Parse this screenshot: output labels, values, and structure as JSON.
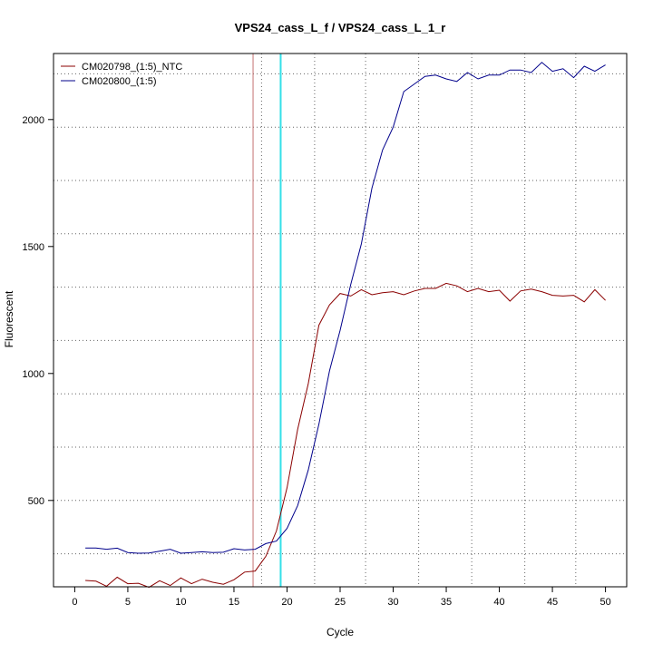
{
  "chart_data": {
    "type": "line",
    "title": "VPS24_cass_L_f / VPS24_cass_L_1_r",
    "xlabel": "Cycle",
    "ylabel": "Fluorescent",
    "xlim": [
      -2,
      52
    ],
    "ylim": [
      160,
      2260
    ],
    "xticks": [
      0,
      5,
      10,
      15,
      20,
      25,
      30,
      35,
      40,
      45,
      50
    ],
    "yticks": [
      500,
      1000,
      1500,
      2000
    ],
    "grid": true,
    "legend_position": "top-left",
    "x": [
      1,
      2,
      3,
      4,
      5,
      6,
      7,
      8,
      9,
      10,
      11,
      12,
      13,
      14,
      15,
      16,
      17,
      18,
      19,
      20,
      21,
      22,
      23,
      24,
      25,
      26,
      27,
      28,
      29,
      30,
      31,
      32,
      33,
      34,
      35,
      36,
      37,
      38,
      39,
      40,
      41,
      42,
      43,
      44,
      45,
      46,
      47,
      48,
      49,
      50
    ],
    "series": [
      {
        "name": "CM020798_(1:5)_NTC",
        "color": "#8b0000",
        "values": [
          185,
          182,
          162,
          198,
          172,
          174,
          158,
          184,
          165,
          195,
          172,
          190,
          178,
          170,
          188,
          218,
          222,
          280,
          380,
          550,
          780,
          960,
          1190,
          1270,
          1315,
          1305,
          1330,
          1310,
          1318,
          1322,
          1310,
          1325,
          1335,
          1335,
          1355,
          1345,
          1322,
          1335,
          1322,
          1328,
          1285,
          1325,
          1332,
          1322,
          1308,
          1305,
          1308,
          1282,
          1330,
          1288
        ]
      },
      {
        "name": "CM020800_(1:5)",
        "color": "#00008b",
        "values": [
          313,
          313,
          308,
          312,
          295,
          292,
          293,
          300,
          308,
          292,
          295,
          298,
          295,
          296,
          310,
          305,
          308,
          330,
          340,
          390,
          480,
          620,
          800,
          1010,
          1170,
          1350,
          1510,
          1730,
          1880,
          1970,
          2110,
          2140,
          2170,
          2175,
          2160,
          2150,
          2185,
          2160,
          2175,
          2175,
          2195,
          2195,
          2185,
          2225,
          2190,
          2200,
          2165,
          2210,
          2190,
          2215
        ]
      }
    ],
    "vlines": [
      {
        "x": 16.8,
        "color": "#c47070"
      },
      {
        "x": 19.4,
        "color": "#33e0e8"
      }
    ],
    "grid_x": [
      17.6,
      22.6,
      27.4,
      32.4,
      37.4,
      42.4,
      47.2
    ],
    "grid_y": [
      290,
      500,
      710,
      920,
      1130,
      1340,
      1550,
      1760,
      1970,
      2180
    ]
  }
}
